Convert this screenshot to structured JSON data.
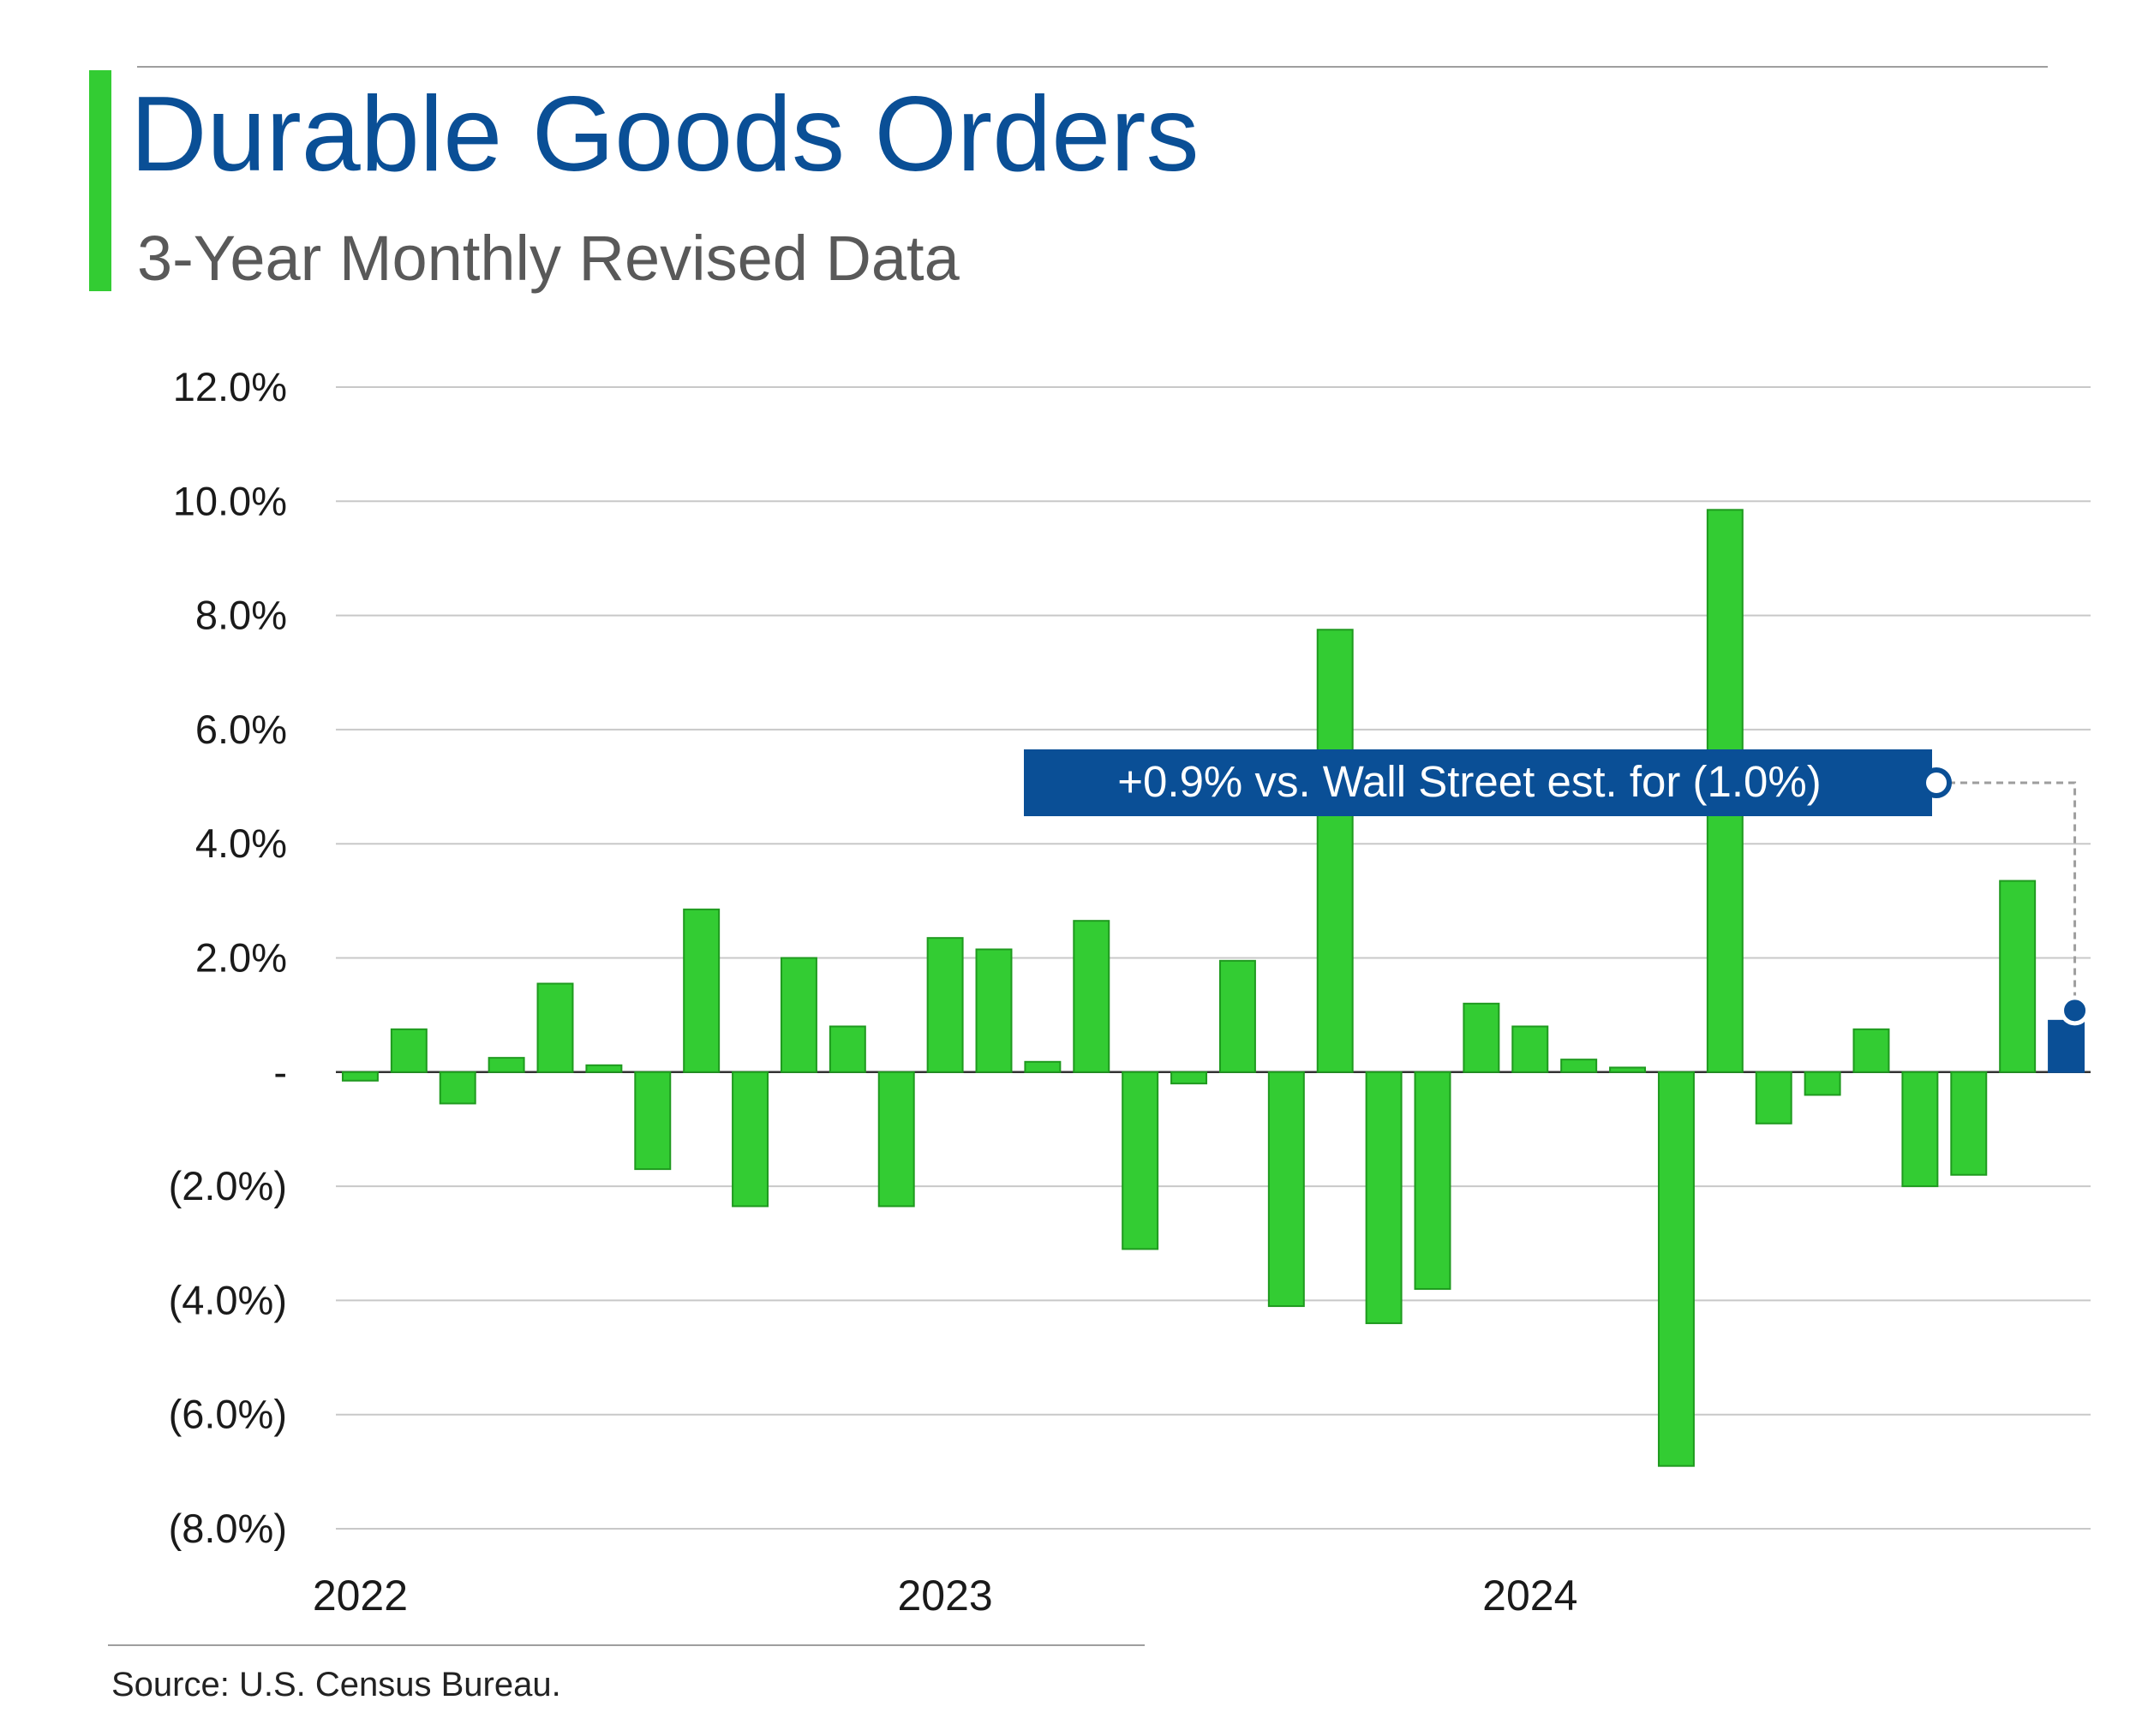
{
  "header": {
    "title": "Durable Goods Orders",
    "subtitle": "3-Year Monthly Revised Data"
  },
  "footer": {
    "source": "Source: U.S. Census Bureau."
  },
  "colors": {
    "title": "#0a4f96",
    "accent": "#33cc33",
    "bar_default": "#33cc33",
    "bar_stroke": "#1f9a1f",
    "bar_highlight": "#0a4f96",
    "callout_bg": "#0a4f96",
    "gridline": "#c8c8c8"
  },
  "chart_data": {
    "type": "bar",
    "title": "Durable Goods Orders",
    "subtitle": "3-Year Monthly Revised Data",
    "xlabel": "",
    "ylabel": "",
    "ylim": [
      -8,
      12
    ],
    "y_ticks": [
      {
        "value": 12,
        "label": "12.0%"
      },
      {
        "value": 10,
        "label": "10.0%"
      },
      {
        "value": 8,
        "label": "8.0%"
      },
      {
        "value": 6,
        "label": "6.0%"
      },
      {
        "value": 4,
        "label": "4.0%"
      },
      {
        "value": 2,
        "label": "2.0%"
      },
      {
        "value": 0,
        "label": "-"
      },
      {
        "value": -2,
        "label": "(2.0%)"
      },
      {
        "value": -4,
        "label": "(4.0%)"
      },
      {
        "value": -6,
        "label": "(6.0%)"
      },
      {
        "value": -8,
        "label": "(8.0%)"
      }
    ],
    "x_labels": [
      {
        "index": 0,
        "label": "2022"
      },
      {
        "index": 12,
        "label": "2023"
      },
      {
        "index": 24,
        "label": "2024"
      }
    ],
    "values": [
      -0.15,
      0.75,
      -0.55,
      0.25,
      1.55,
      0.12,
      -1.7,
      2.85,
      -2.35,
      2.0,
      0.8,
      -2.35,
      2.35,
      2.15,
      0.18,
      2.65,
      -3.1,
      -0.2,
      1.95,
      -4.1,
      7.75,
      -4.4,
      -3.8,
      1.2,
      0.8,
      0.22,
      0.08,
      -6.9,
      9.85,
      -0.9,
      -0.4,
      0.75,
      -2.0,
      -1.8,
      3.35,
      0.9
    ],
    "highlight_index": 35,
    "grid": true,
    "legend": "none",
    "annotation": {
      "text": "+0.9% vs. Wall Street est. for (1.0%)",
      "target_index": 35
    }
  }
}
